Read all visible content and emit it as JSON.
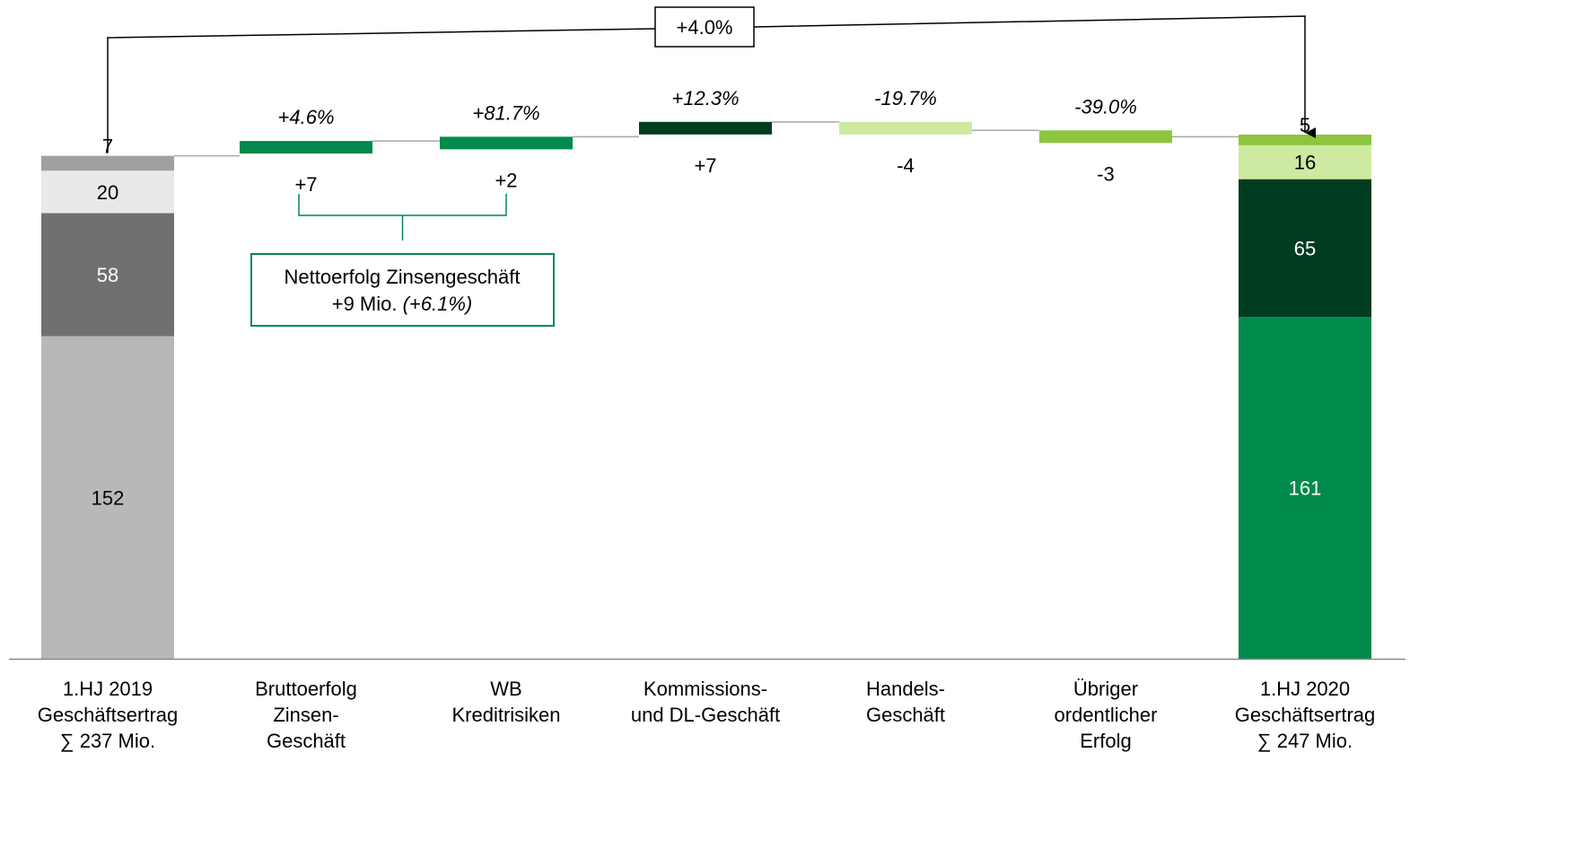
{
  "chart_data": {
    "type": "bar",
    "subtype": "waterfall",
    "title": "",
    "xlabel": "",
    "ylabel": "",
    "ylim": [
      0,
      260
    ],
    "categories": [
      [
        "1.HJ 2019",
        "Geschäftsertrag",
        "∑ 237 Mio."
      ],
      [
        "Bruttoerfolg",
        "Zinsen-",
        "Geschäft"
      ],
      [
        "WB",
        "Kreditrisiken"
      ],
      [
        "Kommissions-",
        "und DL-Geschäft"
      ],
      [
        "Handels-",
        "Geschäft"
      ],
      [
        "Übriger",
        "ordentlicher",
        "Erfolg"
      ],
      [
        "1.HJ 2020",
        "Geschäftsertrag",
        "∑ 247 Mio."
      ]
    ],
    "start_total": {
      "total": 237,
      "segments": [
        {
          "value": 152,
          "label": "152",
          "color": "#b8b8b8",
          "label_color": "#000000"
        },
        {
          "value": 58,
          "label": "58",
          "color": "#707070",
          "label_color": "#ffffff"
        },
        {
          "value": 20,
          "label": "20",
          "color": "#e8e8e8",
          "label_color": "#000000"
        },
        {
          "value": 7,
          "label": "7",
          "color": "#a0a0a0",
          "label_color": "#000000"
        }
      ]
    },
    "end_total": {
      "total": 247,
      "segments": [
        {
          "value": 161,
          "label": "161",
          "color": "#008a4c",
          "label_color": "#ffffff"
        },
        {
          "value": 65,
          "label": "65",
          "color": "#003d20",
          "label_color": "#ffffff"
        },
        {
          "value": 16,
          "label": "16",
          "color": "#cdeaa0",
          "label_color": "#000000"
        },
        {
          "value": 5,
          "label": "5",
          "color": "#8cc63f",
          "label_color": "#000000"
        }
      ]
    },
    "deltas": [
      {
        "value": 7,
        "label": "+7",
        "pct": "+4.6%",
        "color": "#008a4c"
      },
      {
        "value": 2,
        "label": "+2",
        "pct": "+81.7%",
        "color": "#008a4c"
      },
      {
        "value": 7,
        "label": "+7",
        "pct": "+12.3%",
        "color": "#003d20"
      },
      {
        "value": -4,
        "label": "-4",
        "pct": "-19.7%",
        "color": "#cdeaa0"
      },
      {
        "value": -3,
        "label": "-3",
        "pct": "-39.0%",
        "color": "#8cc63f"
      }
    ],
    "total_change": "+4.0%",
    "annotation": {
      "line1": "Nettoerfolg Zinsengeschäft",
      "line2_prefix": "+9 Mio. ",
      "line2_pct": "(+6.1%)",
      "border_color": "#008a4c"
    },
    "grid": false,
    "legend": "none"
  }
}
